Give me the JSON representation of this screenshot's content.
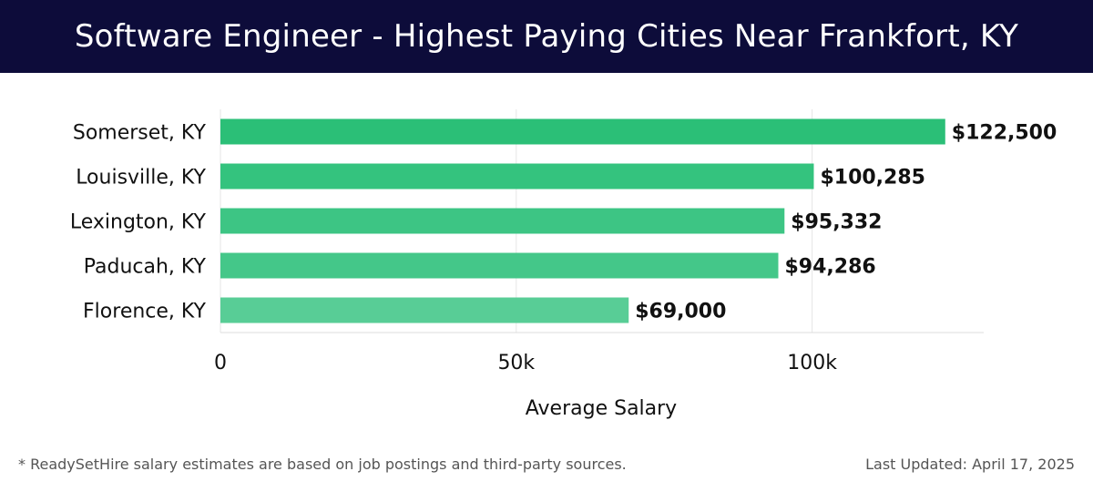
{
  "header": {
    "title": "Software Engineer - Highest Paying Cities Near Frankfort, KY"
  },
  "footer": {
    "note": "* ReadySetHire salary estimates are based on job postings and third-party sources.",
    "updated": "Last Updated: April 17, 2025"
  },
  "chart_data": {
    "type": "bar",
    "orientation": "horizontal",
    "categories": [
      "Somerset, KY",
      "Louisville, KY",
      "Lexington, KY",
      "Paducah, KY",
      "Florence, KY"
    ],
    "values": [
      122500,
      100285,
      95332,
      94286,
      69000
    ],
    "data_labels": [
      "$122,500",
      "$100,285",
      "$95,332",
      "$94,286",
      "$69,000"
    ],
    "bar_colors": [
      "#2bbf77",
      "#34c37e",
      "#3dc584",
      "#44c789",
      "#58cd96"
    ],
    "xlabel": "Average Salary",
    "ylabel": "",
    "xlim": [
      0,
      129000
    ],
    "xticks": [
      0,
      50000,
      100000
    ],
    "xtick_labels": [
      "0",
      "50k",
      "100k"
    ],
    "grid": true,
    "legend": "none"
  }
}
